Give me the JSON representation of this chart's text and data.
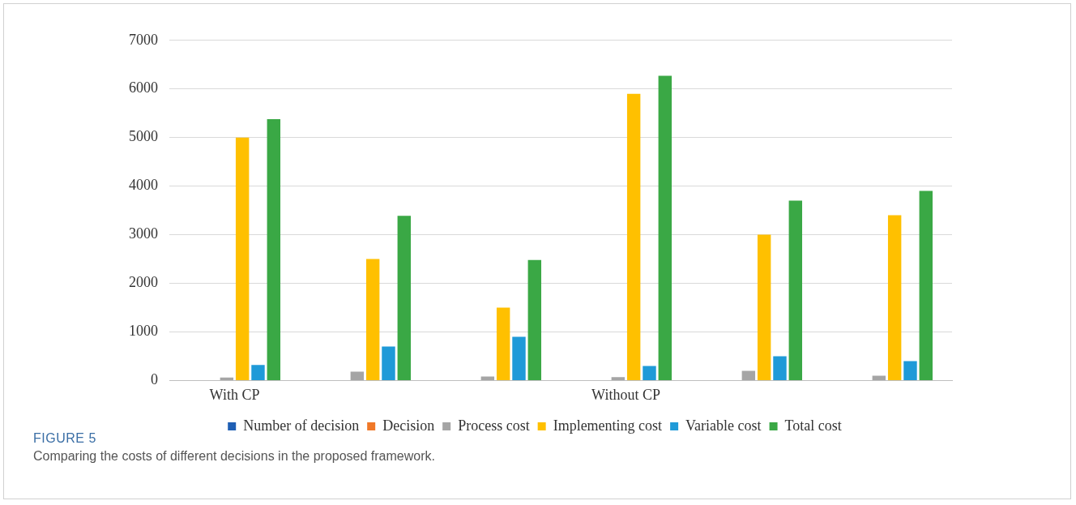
{
  "chart_data": {
    "type": "bar",
    "title": "FIGURE 5",
    "annotations": [
      "Comparing the costs of different decisions in the proposed framework."
    ],
    "categories": [
      "With CP",
      null,
      null,
      "Without CP",
      null,
      null
    ],
    "series": [
      {
        "name": "Number of decision",
        "color": "#1f5fb4",
        "values": [
          0,
          0,
          0,
          0,
          0,
          0
        ]
      },
      {
        "name": "Decision",
        "color": "#f07828",
        "values": [
          0,
          0,
          0,
          0,
          0,
          0
        ]
      },
      {
        "name": "Process cost",
        "color": "#a5a5a5",
        "values": [
          60,
          180,
          80,
          70,
          200,
          100
        ]
      },
      {
        "name": "Implementing cost",
        "color": "#ffc000",
        "values": [
          5000,
          2500,
          1500,
          5900,
          3000,
          3400
        ]
      },
      {
        "name": "Variable cost",
        "color": "#1f9ad8",
        "values": [
          320,
          700,
          900,
          300,
          500,
          400
        ]
      },
      {
        "name": "Total cost",
        "color": "#3aa845",
        "values": [
          5380,
          3390,
          2480,
          6270,
          3700,
          3900
        ]
      }
    ],
    "ylim": [
      0,
      7000
    ],
    "yticks": [
      0,
      1000,
      2000,
      3000,
      4000,
      5000,
      6000,
      7000
    ],
    "grid": "y",
    "legend": "bottom"
  }
}
